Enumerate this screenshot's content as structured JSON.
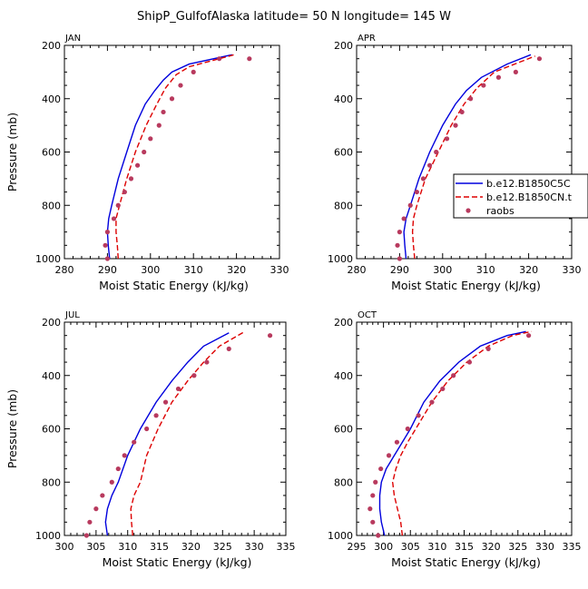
{
  "figure_title": "ShipP_GulfofAlaska  latitude= 50 N longitude= 145 W",
  "colors": {
    "model_a": "#0000dd",
    "model_b": "#dd0000",
    "raobs": "#b83a5e"
  },
  "legend": {
    "items": [
      "b.e12.B1850C5C",
      "b.e12.B1850CN.t",
      "raobs"
    ]
  },
  "chart_data": [
    {
      "type": "line",
      "panel": "JAN",
      "title": "JAN",
      "xlabel": "Moist Static Energy (kJ/kg)",
      "ylabel": "Pressure (mb)",
      "xlim": [
        280,
        330
      ],
      "ylim": [
        1000,
        200
      ],
      "y_reversed": true,
      "x_ticks": [
        "280",
        "290",
        "300",
        "310",
        "320",
        "330"
      ],
      "y_ticks": [
        "200",
        "400",
        "600",
        "800",
        "1000"
      ],
      "legend_position": "right",
      "series": [
        {
          "name": "b.e12.B1850C5C",
          "style": "solid",
          "points": [
            [
              290.5,
              1000
            ],
            [
              290.2,
              950
            ],
            [
              290.0,
              900
            ],
            [
              290.3,
              850
            ],
            [
              291.0,
              800
            ],
            [
              292.5,
              700
            ],
            [
              294.5,
              600
            ],
            [
              296.5,
              500
            ],
            [
              298.8,
              420
            ],
            [
              301,
              370
            ],
            [
              303,
              330
            ],
            [
              305,
              300
            ],
            [
              309,
              270
            ],
            [
              319,
              235
            ]
          ]
        },
        {
          "name": "b.e12.B1850CN.t",
          "style": "dashed",
          "points": [
            [
              292.5,
              1000
            ],
            [
              292.3,
              950
            ],
            [
              292.0,
              900
            ],
            [
              292.0,
              850
            ],
            [
              292.8,
              800
            ],
            [
              294.5,
              700
            ],
            [
              296.5,
              600
            ],
            [
              299,
              500
            ],
            [
              301.5,
              420
            ],
            [
              303.5,
              360
            ],
            [
              306,
              310
            ],
            [
              309,
              280
            ],
            [
              319.5,
              235
            ]
          ]
        },
        {
          "name": "raobs",
          "style": "markers",
          "points": [
            [
              290,
              1000
            ],
            [
              289.5,
              950
            ],
            [
              290,
              900
            ],
            [
              291.5,
              850
            ],
            [
              292.5,
              800
            ],
            [
              294,
              750
            ],
            [
              295.5,
              700
            ],
            [
              297,
              650
            ],
            [
              298.5,
              600
            ],
            [
              300,
              550
            ],
            [
              302,
              500
            ],
            [
              303,
              450
            ],
            [
              305,
              400
            ],
            [
              307,
              350
            ],
            [
              310,
              300
            ],
            [
              316,
              250
            ],
            [
              323,
              250
            ]
          ]
        }
      ]
    },
    {
      "type": "line",
      "panel": "APR",
      "title": "APR",
      "xlabel": "Moist Static Energy (kJ/kg)",
      "ylabel": "",
      "xlim": [
        280,
        330
      ],
      "ylim": [
        1000,
        200
      ],
      "y_reversed": true,
      "x_ticks": [
        "280",
        "290",
        "300",
        "310",
        "320",
        "330"
      ],
      "y_ticks": [
        "200",
        "400",
        "600",
        "800",
        "1000"
      ],
      "series": [
        {
          "name": "b.e12.B1850C5C",
          "style": "solid",
          "points": [
            [
              291.5,
              1000
            ],
            [
              291.2,
              950
            ],
            [
              291,
              900
            ],
            [
              291.5,
              850
            ],
            [
              292.5,
              800
            ],
            [
              294.5,
              700
            ],
            [
              297,
              600
            ],
            [
              300,
              500
            ],
            [
              303,
              420
            ],
            [
              305.5,
              370
            ],
            [
              309,
              320
            ],
            [
              315,
              270
            ],
            [
              320.5,
              235
            ]
          ]
        },
        {
          "name": "b.e12.B1850CN.t",
          "style": "dashed",
          "points": [
            [
              293.5,
              1000
            ],
            [
              293.2,
              950
            ],
            [
              293,
              900
            ],
            [
              293.2,
              850
            ],
            [
              294,
              800
            ],
            [
              296,
              700
            ],
            [
              299,
              600
            ],
            [
              302,
              500
            ],
            [
              305,
              420
            ],
            [
              308,
              360
            ],
            [
              312,
              300
            ],
            [
              321.5,
              240
            ]
          ]
        },
        {
          "name": "raobs",
          "style": "markers",
          "points": [
            [
              290,
              1000
            ],
            [
              289.5,
              950
            ],
            [
              290,
              900
            ],
            [
              291,
              850
            ],
            [
              292.5,
              800
            ],
            [
              294,
              750
            ],
            [
              295.5,
              700
            ],
            [
              297,
              650
            ],
            [
              298.5,
              600
            ],
            [
              301,
              550
            ],
            [
              303,
              500
            ],
            [
              304.5,
              450
            ],
            [
              306.5,
              400
            ],
            [
              309.5,
              350
            ],
            [
              313,
              320
            ],
            [
              317,
              300
            ],
            [
              322.5,
              250
            ]
          ]
        }
      ]
    },
    {
      "type": "line",
      "panel": "JUL",
      "title": "JUL",
      "xlabel": "Moist Static Energy (kJ/kg)",
      "ylabel": "Pressure (mb)",
      "xlim": [
        300,
        335
      ],
      "ylim": [
        1000,
        200
      ],
      "y_reversed": true,
      "x_ticks": [
        "300",
        "305",
        "310",
        "315",
        "320",
        "325",
        "330",
        "335"
      ],
      "y_ticks": [
        "200",
        "400",
        "600",
        "800",
        "1000"
      ],
      "series": [
        {
          "name": "b.e12.B1850C5C",
          "style": "solid",
          "points": [
            [
              306.8,
              1000
            ],
            [
              306.5,
              950
            ],
            [
              306.8,
              900
            ],
            [
              307.5,
              850
            ],
            [
              308.5,
              800
            ],
            [
              310,
              700
            ],
            [
              312,
              600
            ],
            [
              314.5,
              500
            ],
            [
              317,
              420
            ],
            [
              319.5,
              350
            ],
            [
              322,
              290
            ],
            [
              326,
              240
            ]
          ]
        },
        {
          "name": "b.e12.B1850CN.t",
          "style": "dashed",
          "points": [
            [
              310.8,
              1000
            ],
            [
              310.6,
              950
            ],
            [
              310.5,
              900
            ],
            [
              311,
              850
            ],
            [
              312,
              800
            ],
            [
              313,
              700
            ],
            [
              314.8,
              600
            ],
            [
              317,
              500
            ],
            [
              319.5,
              420
            ],
            [
              322,
              350
            ],
            [
              324.5,
              290
            ],
            [
              328.5,
              235
            ]
          ]
        },
        {
          "name": "raobs",
          "style": "markers",
          "points": [
            [
              303.5,
              1000
            ],
            [
              304,
              950
            ],
            [
              305,
              900
            ],
            [
              306,
              850
            ],
            [
              307.5,
              800
            ],
            [
              308.5,
              750
            ],
            [
              309.5,
              700
            ],
            [
              311,
              650
            ],
            [
              313,
              600
            ],
            [
              314.5,
              550
            ],
            [
              316,
              500
            ],
            [
              318,
              450
            ],
            [
              320.5,
              400
            ],
            [
              322.5,
              350
            ],
            [
              326,
              300
            ],
            [
              332.5,
              250
            ]
          ]
        }
      ]
    },
    {
      "type": "line",
      "panel": "OCT",
      "title": "OCT",
      "xlabel": "Moist Static Energy (kJ/kg)",
      "ylabel": "",
      "xlim": [
        295,
        335
      ],
      "ylim": [
        1000,
        200
      ],
      "y_reversed": true,
      "x_ticks": [
        "295",
        "300",
        "305",
        "310",
        "315",
        "320",
        "325",
        "330",
        "335"
      ],
      "y_ticks": [
        "200",
        "400",
        "600",
        "800",
        "1000"
      ],
      "series": [
        {
          "name": "b.e12.B1850C5C",
          "style": "solid",
          "points": [
            [
              300.2,
              1000
            ],
            [
              299.6,
              950
            ],
            [
              299.3,
              900
            ],
            [
              299.3,
              850
            ],
            [
              299.6,
              800
            ],
            [
              300.5,
              750
            ],
            [
              302,
              700
            ],
            [
              303.5,
              650
            ],
            [
              305,
              600
            ],
            [
              307.5,
              500
            ],
            [
              310.5,
              420
            ],
            [
              314,
              350
            ],
            [
              318,
              290
            ],
            [
              323,
              250
            ],
            [
              326.5,
              235
            ]
          ]
        },
        {
          "name": "b.e12.B1850CN.t",
          "style": "dashed",
          "points": [
            [
              303.5,
              1000
            ],
            [
              303.2,
              950
            ],
            [
              302.6,
              900
            ],
            [
              302,
              850
            ],
            [
              301.7,
              800
            ],
            [
              302.3,
              750
            ],
            [
              303.2,
              700
            ],
            [
              304.5,
              650
            ],
            [
              306,
              600
            ],
            [
              309,
              500
            ],
            [
              312,
              420
            ],
            [
              315.5,
              350
            ],
            [
              319.5,
              290
            ],
            [
              324,
              250
            ],
            [
              327.5,
              235
            ]
          ]
        },
        {
          "name": "raobs",
          "style": "markers",
          "points": [
            [
              299,
              1000
            ],
            [
              298,
              950
            ],
            [
              297.5,
              900
            ],
            [
              298,
              850
            ],
            [
              298.5,
              800
            ],
            [
              299.5,
              750
            ],
            [
              301,
              700
            ],
            [
              302.5,
              650
            ],
            [
              304.5,
              600
            ],
            [
              306.5,
              550
            ],
            [
              309,
              500
            ],
            [
              311,
              450
            ],
            [
              313,
              400
            ],
            [
              316,
              350
            ],
            [
              319.5,
              300
            ],
            [
              327,
              250
            ]
          ]
        }
      ]
    }
  ]
}
